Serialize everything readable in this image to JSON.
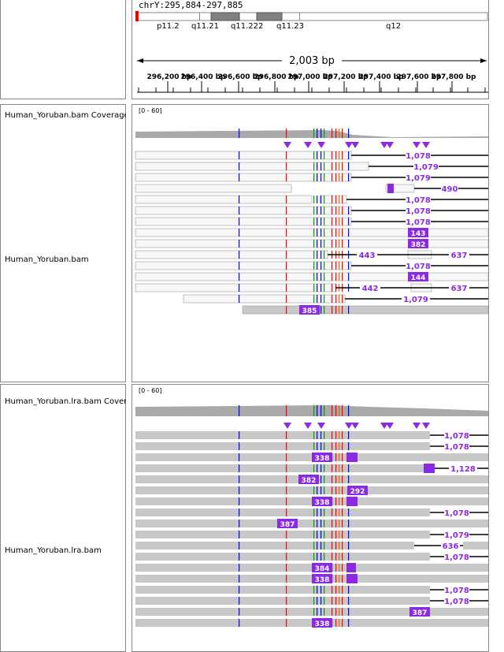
{
  "header": {
    "locus": "chrY:295,884-297,885",
    "bands": [
      "p11.2",
      "q11.21",
      "q11.222",
      "q11.23",
      "q12"
    ],
    "span_label": "2,003 bp",
    "ruler_ticks": [
      "296,200 bp",
      "296,400 bp",
      "296,600 bp",
      "296,800 bp",
      "297,000 bp",
      "297,200 bp",
      "297,400 bp",
      "297,600 bp",
      "297,800 bp"
    ]
  },
  "tracks": [
    {
      "coverage_name": "Human_Yoruban.bam Coverage",
      "alignment_name": "Human_Yoruban.bam",
      "range": "[0 - 60]",
      "labels": [
        "1,078",
        "1,079",
        "1,079",
        "490",
        "1,078",
        "1,078",
        "1,078",
        "143",
        "382",
        "443",
        "637",
        "1,078",
        "144",
        "442",
        "637",
        "1,079",
        "385"
      ]
    },
    {
      "coverage_name": "Human_Yoruban.lra.bam Coverage",
      "alignment_name": "Human_Yoruban.lra.bam",
      "range": "[0 - 60]",
      "labels": [
        "1,078",
        "1,078",
        "338",
        "1,128",
        "382",
        "292",
        "338",
        "1,078",
        "387",
        "1,079",
        "636",
        "1,078",
        "384",
        "338",
        "1,078",
        "1,078",
        "387",
        "338"
      ]
    }
  ],
  "colors": {
    "insertion": "#8a2be2",
    "read_fill": "#c8c8c8",
    "read_white": "#f7f7f7",
    "mismatch_a": "#00a000",
    "mismatch_c": "#0000ff",
    "mismatch_g": "#d17105",
    "mismatch_t": "#ff0000"
  }
}
